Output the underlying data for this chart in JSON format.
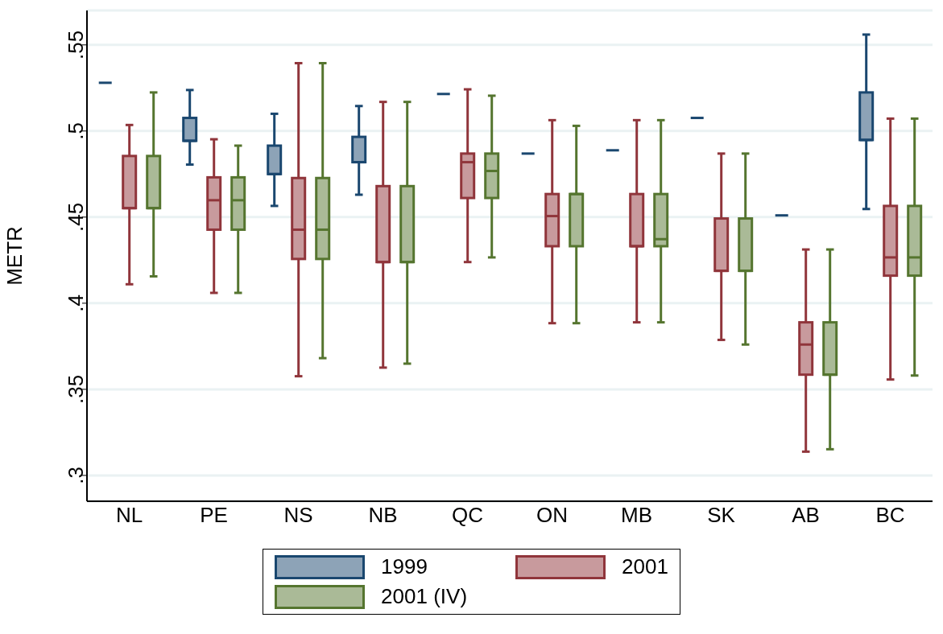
{
  "chart_data": {
    "type": "box",
    "ylabel": "METR",
    "categories": [
      "NL",
      "PE",
      "NS",
      "NB",
      "QC",
      "ON",
      "MB",
      "SK",
      "AB",
      "BC"
    ],
    "ylim": [
      0.285,
      0.57
    ],
    "yticks": [
      {
        "value": 0.3,
        "label": ".3"
      },
      {
        "value": 0.35,
        "label": ".35"
      },
      {
        "value": 0.4,
        "label": ".4"
      },
      {
        "value": 0.45,
        "label": ".45"
      },
      {
        "value": 0.5,
        "label": ".5"
      },
      {
        "value": 0.55,
        "label": ".55"
      }
    ],
    "grid": "y",
    "legend": "bottom",
    "series": [
      {
        "name": "1999",
        "color": "#1a476f",
        "boxes": [
          {
            "low": 0.528,
            "q1": 0.528,
            "median": 0.528,
            "q3": 0.528,
            "high": 0.528
          },
          {
            "low": 0.4805,
            "q1": 0.4943,
            "median": 0.4943,
            "q3": 0.5076,
            "high": 0.5238
          },
          {
            "low": 0.4565,
            "q1": 0.475,
            "median": 0.475,
            "q3": 0.4915,
            "high": 0.51
          },
          {
            "low": 0.463,
            "q1": 0.4819,
            "median": 0.4819,
            "q3": 0.4966,
            "high": 0.5145
          },
          {
            "low": 0.5215,
            "q1": 0.5215,
            "median": 0.5215,
            "q3": 0.5215,
            "high": 0.5215
          },
          {
            "low": 0.4869,
            "q1": 0.4869,
            "median": 0.4869,
            "q3": 0.4869,
            "high": 0.4869
          },
          {
            "low": 0.4888,
            "q1": 0.4888,
            "median": 0.4888,
            "q3": 0.4888,
            "high": 0.4888
          },
          {
            "low": 0.5076,
            "q1": 0.5076,
            "median": 0.5076,
            "q3": 0.5076,
            "high": 0.5076
          },
          {
            "low": 0.451,
            "q1": 0.451,
            "median": 0.451,
            "q3": 0.451,
            "high": 0.451
          },
          {
            "low": 0.4547,
            "q1": 0.4948,
            "median": 0.4948,
            "q3": 0.5224,
            "high": 0.556
          }
        ]
      },
      {
        "name": "2001",
        "color": "#90353b",
        "boxes": [
          {
            "low": 0.411,
            "q1": 0.4552,
            "median": 0.4552,
            "q3": 0.4855,
            "high": 0.5035
          },
          {
            "low": 0.406,
            "q1": 0.4427,
            "median": 0.4598,
            "q3": 0.4731,
            "high": 0.4952
          },
          {
            "low": 0.3576,
            "q1": 0.4257,
            "median": 0.4427,
            "q3": 0.4727,
            "high": 0.5394
          },
          {
            "low": 0.3626,
            "q1": 0.4239,
            "median": 0.4239,
            "q3": 0.468,
            "high": 0.5169
          },
          {
            "low": 0.4239,
            "q1": 0.4611,
            "median": 0.4819,
            "q3": 0.4869,
            "high": 0.5242
          },
          {
            "low": 0.3884,
            "q1": 0.4331,
            "median": 0.4506,
            "q3": 0.4634,
            "high": 0.5063
          },
          {
            "low": 0.3889,
            "q1": 0.4331,
            "median": 0.4331,
            "q3": 0.4634,
            "high": 0.5063
          },
          {
            "low": 0.3787,
            "q1": 0.4188,
            "median": 0.4188,
            "q3": 0.4492,
            "high": 0.4869
          },
          {
            "low": 0.3138,
            "q1": 0.3585,
            "median": 0.376,
            "q3": 0.3889,
            "high": 0.4312
          },
          {
            "low": 0.3557,
            "q1": 0.416,
            "median": 0.4266,
            "q3": 0.4565,
            "high": 0.5072
          }
        ]
      },
      {
        "name": "2001 (IV)",
        "color": "#55752f",
        "boxes": [
          {
            "low": 0.4156,
            "q1": 0.4552,
            "median": 0.4552,
            "q3": 0.4855,
            "high": 0.5224
          },
          {
            "low": 0.406,
            "q1": 0.4427,
            "median": 0.4598,
            "q3": 0.4731,
            "high": 0.4915
          },
          {
            "low": 0.3681,
            "q1": 0.4257,
            "median": 0.4427,
            "q3": 0.4727,
            "high": 0.5394
          },
          {
            "low": 0.3649,
            "q1": 0.4239,
            "median": 0.4239,
            "q3": 0.468,
            "high": 0.5169
          },
          {
            "low": 0.4266,
            "q1": 0.4611,
            "median": 0.4768,
            "q3": 0.4869,
            "high": 0.5205
          },
          {
            "low": 0.3884,
            "q1": 0.4331,
            "median": 0.4634,
            "q3": 0.4634,
            "high": 0.503
          },
          {
            "low": 0.3889,
            "q1": 0.4331,
            "median": 0.4372,
            "q3": 0.4634,
            "high": 0.5063
          },
          {
            "low": 0.376,
            "q1": 0.4188,
            "median": 0.4188,
            "q3": 0.4492,
            "high": 0.4869
          },
          {
            "low": 0.3152,
            "q1": 0.3585,
            "median": 0.3585,
            "q3": 0.3889,
            "high": 0.4312
          },
          {
            "low": 0.358,
            "q1": 0.416,
            "median": 0.4266,
            "q3": 0.4565,
            "high": 0.5072
          }
        ]
      }
    ]
  }
}
